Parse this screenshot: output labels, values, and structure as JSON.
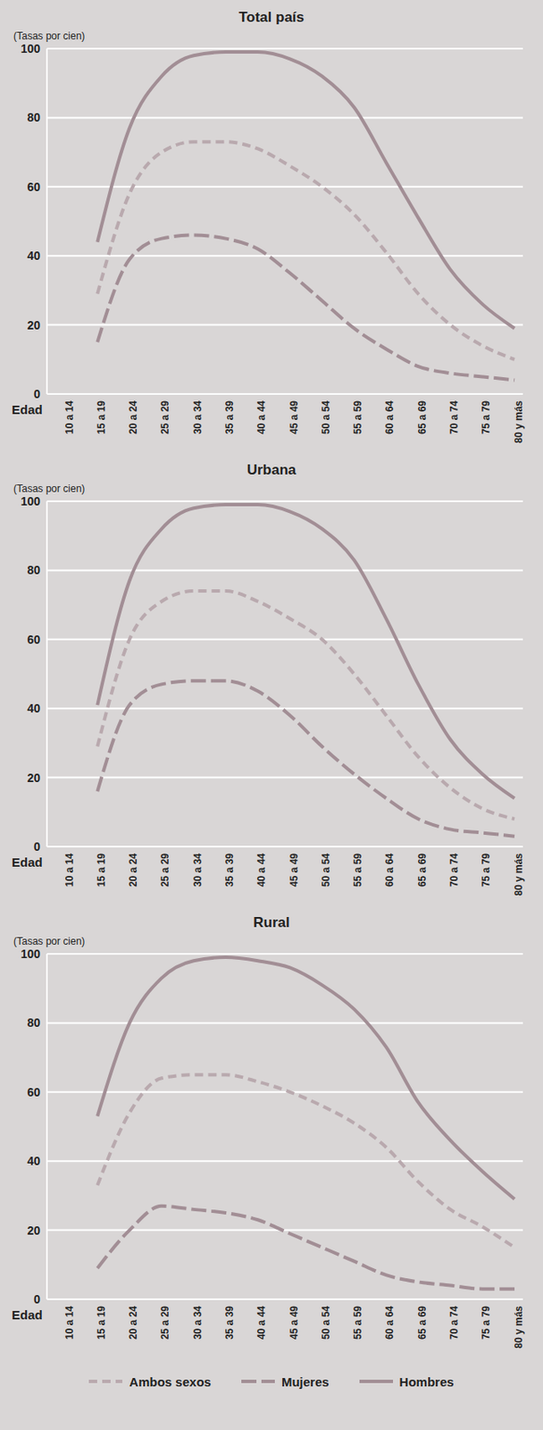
{
  "chart_data": [
    {
      "type": "line",
      "title": "Total país",
      "x_label": "Edad",
      "y_label": "(Tasas por cien)",
      "categories": [
        "10 a 14",
        "15 a 19",
        "20 a 24",
        "25 a 29",
        "30 a 34",
        "35 a 39",
        "40 a 44",
        "45 a 49",
        "50 a 54",
        "55 a 59",
        "60 a 64",
        "65 a 69",
        "70 a 74",
        "75 a 79",
        "80 y más"
      ],
      "series": [
        {
          "name": "Ambos sexos",
          "color": "#b9a9ae",
          "line_style": "dashed",
          "values": [
            null,
            29,
            58,
            70,
            73,
            73,
            71,
            66,
            60,
            52,
            41,
            29,
            20,
            14,
            10
          ]
        },
        {
          "name": "Mujeres",
          "color": "#a28e95",
          "line_style": "long_dashed",
          "values": [
            null,
            15,
            39,
            45,
            46,
            45,
            42,
            35,
            27,
            19,
            13,
            8,
            6,
            5,
            4
          ]
        },
        {
          "name": "Hombres",
          "color": "#a28e95",
          "line_style": "solid",
          "values": [
            null,
            44,
            77,
            92,
            98,
            99,
            99,
            97,
            92,
            83,
            67,
            51,
            36,
            26,
            19
          ]
        }
      ],
      "ylim": [
        0,
        100
      ],
      "yticks": [
        0,
        20,
        40,
        60,
        80,
        100
      ],
      "grid": true
    },
    {
      "type": "line",
      "title": "Urbana",
      "x_label": "Edad",
      "y_label": "(Tasas por cien)",
      "categories": [
        "10 a 14",
        "15 a 19",
        "20 a 24",
        "25 a 29",
        "30 a 34",
        "35 a 39",
        "40 a 44",
        "45 a 49",
        "50 a 54",
        "55 a 59",
        "60 a 64",
        "65 a 69",
        "70 a 74",
        "75 a 79",
        "80 y más"
      ],
      "series": [
        {
          "name": "Ambos sexos",
          "color": "#b9a9ae",
          "line_style": "dashed",
          "values": [
            null,
            29,
            60,
            71,
            74,
            74,
            71,
            66,
            60,
            50,
            38,
            26,
            17,
            11,
            8
          ]
        },
        {
          "name": "Mujeres",
          "color": "#a28e95",
          "line_style": "long_dashed",
          "values": [
            null,
            16,
            41,
            47,
            48,
            48,
            45,
            38,
            29,
            21,
            14,
            8,
            5,
            4,
            3
          ]
        },
        {
          "name": "Hombres",
          "color": "#a28e95",
          "line_style": "solid",
          "values": [
            null,
            41,
            77,
            92,
            98,
            99,
            99,
            97,
            92,
            83,
            66,
            47,
            31,
            21,
            14
          ]
        }
      ],
      "ylim": [
        0,
        100
      ],
      "yticks": [
        0,
        20,
        40,
        60,
        80,
        100
      ],
      "grid": true
    },
    {
      "type": "line",
      "title": "Rural",
      "x_label": "Edad",
      "y_label": "(Tasas por cien)",
      "categories": [
        "10 a 14",
        "15 a 19",
        "20 a 24",
        "25 a 29",
        "30 a 34",
        "35 a 39",
        "40 a 44",
        "45 a 49",
        "50 a 54",
        "55 a 59",
        "60 a 64",
        "65 a 69",
        "70 a 74",
        "75 a 79",
        "80 y más"
      ],
      "series": [
        {
          "name": "Ambos sexos",
          "color": "#b9a9ae",
          "line_style": "dashed",
          "values": [
            null,
            33,
            54,
            64,
            65,
            65,
            63,
            60,
            56,
            51,
            44,
            34,
            26,
            21,
            15
          ]
        },
        {
          "name": "Mujeres",
          "color": "#a28e95",
          "line_style": "long_dashed",
          "values": [
            null,
            9,
            20,
            27,
            26,
            25,
            23,
            19,
            15,
            11,
            7,
            5,
            4,
            3,
            3
          ]
        },
        {
          "name": "Hombres",
          "color": "#a28e95",
          "line_style": "solid",
          "values": [
            null,
            53,
            80,
            93,
            98,
            99,
            98,
            96,
            91,
            84,
            73,
            57,
            46,
            37,
            29
          ]
        }
      ],
      "ylim": [
        0,
        100
      ],
      "yticks": [
        0,
        20,
        40,
        60,
        80,
        100
      ],
      "grid": true,
      "legend": "bottom"
    }
  ]
}
